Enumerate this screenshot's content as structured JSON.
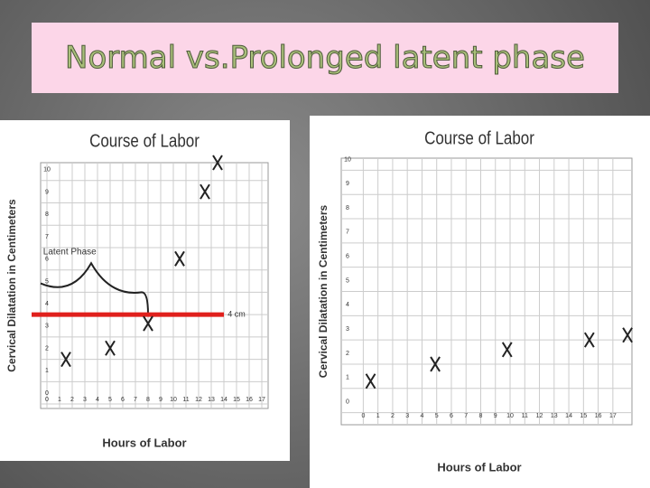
{
  "title": "Normal vs.Prolonged latent phase",
  "chart_data": [
    {
      "type": "scatter",
      "title": "Course of Labor",
      "xlabel": "Hours of Labor",
      "ylabel": "Cervical Dilatation in Centimeters",
      "x": [
        1.5,
        5,
        8,
        10.5,
        12.5,
        13.5
      ],
      "values": [
        2,
        2.5,
        3.6,
        6.5,
        9.5,
        10.8
      ],
      "color": "#222222",
      "xlim": [
        -0.5,
        17.5
      ],
      "ylim": [
        -0.2,
        10.8
      ],
      "xticks": [
        0,
        1,
        2,
        3,
        4,
        5,
        6,
        7,
        8,
        9,
        10,
        11,
        12,
        13,
        14,
        15,
        16,
        17
      ],
      "yticks": [
        0,
        1,
        2,
        3,
        4,
        5,
        6,
        7,
        8,
        9,
        10
      ],
      "grid": true,
      "annotations": [
        {
          "text": "Latent Phase"
        },
        {
          "value": 4,
          "label": "4 cm",
          "color": "#e0201c"
        }
      ]
    },
    {
      "type": "scatter",
      "title": "Course of Labor",
      "xlabel": "Hours of Labor",
      "ylabel": "Cervical Dilatation in Centimeters",
      "x": [
        0.5,
        4.9,
        9.8,
        15.4,
        18
      ],
      "values": [
        1.3,
        2,
        2.6,
        3,
        3.2
      ],
      "color": "#222222",
      "xlim": [
        -1.5,
        18.3
      ],
      "ylim": [
        -0.5,
        10.5
      ],
      "xticks": [
        0,
        1,
        2,
        3,
        4,
        5,
        6,
        7,
        8,
        9,
        10,
        11,
        12,
        13,
        14,
        15,
        16,
        17
      ],
      "yticks": [
        0,
        1,
        2,
        3,
        4,
        5,
        6,
        7,
        8,
        9,
        10
      ],
      "grid": true
    }
  ]
}
